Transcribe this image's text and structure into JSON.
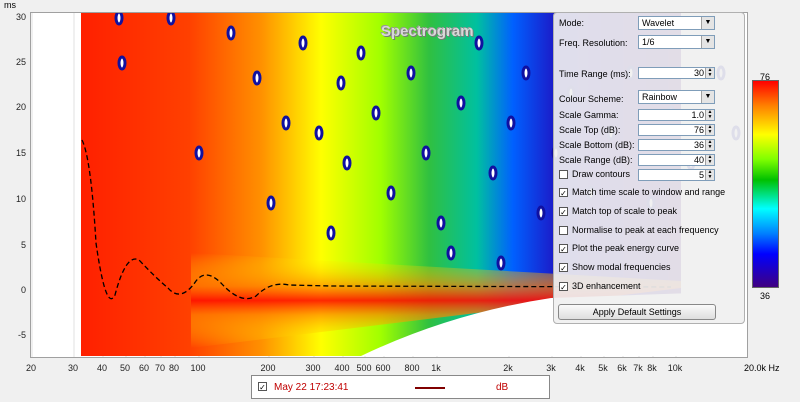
{
  "plot": {
    "title": "Spectrogram",
    "y_unit": "ms",
    "x_unit": "20.0k Hz",
    "y_ticks": [
      "30",
      "25",
      "20",
      "15",
      "10",
      "5",
      "0",
      "-5"
    ],
    "x_ticks": [
      "20",
      "30",
      "40",
      "50",
      "60",
      "70",
      "80",
      "100",
      "200",
      "300",
      "400",
      "500",
      "600",
      "800",
      "1k",
      "2k",
      "3k",
      "4k",
      "5k",
      "6k",
      "7k",
      "8k",
      "10k"
    ],
    "colors": {
      "red": "#ff0000",
      "yellow": "#ffff00",
      "green": "#00c000",
      "blue": "#0000ff"
    }
  },
  "panel": {
    "mode_label": "Mode:",
    "mode_value": "Wavelet",
    "freq_label": "Freq. Resolution:",
    "freq_value": "1/6",
    "time_range_label": "Time Range (ms):",
    "time_range_value": "30",
    "colour_scheme_label": "Colour Scheme:",
    "colour_scheme_value": "Rainbow",
    "scale_gamma_label": "Scale Gamma:",
    "scale_gamma_value": "1.0",
    "scale_top_label": "Scale Top (dB):",
    "scale_top_value": "76",
    "scale_bottom_label": "Scale Bottom (dB):",
    "scale_bottom_value": "36",
    "scale_range_label": "Scale Range (dB):",
    "scale_range_value": "40",
    "draw_contours_label": "Draw contours",
    "draw_contours_value": "5",
    "checks": [
      {
        "label": "Match time scale to window and range",
        "checked": true
      },
      {
        "label": "Match top of scale to peak",
        "checked": true
      },
      {
        "label": "Normalise to peak at each frequency",
        "checked": false
      },
      {
        "label": "Plot the peak energy curve",
        "checked": true
      },
      {
        "label": "Show modal frequencies",
        "checked": true
      },
      {
        "label": "3D enhancement",
        "checked": true
      }
    ],
    "apply_label": "Apply Default Settings"
  },
  "scale": {
    "top": "76",
    "bottom": "36"
  },
  "legend": {
    "name": "May 22 17:23:41",
    "unit": "dB",
    "checked": true,
    "line_color": "#800000"
  }
}
